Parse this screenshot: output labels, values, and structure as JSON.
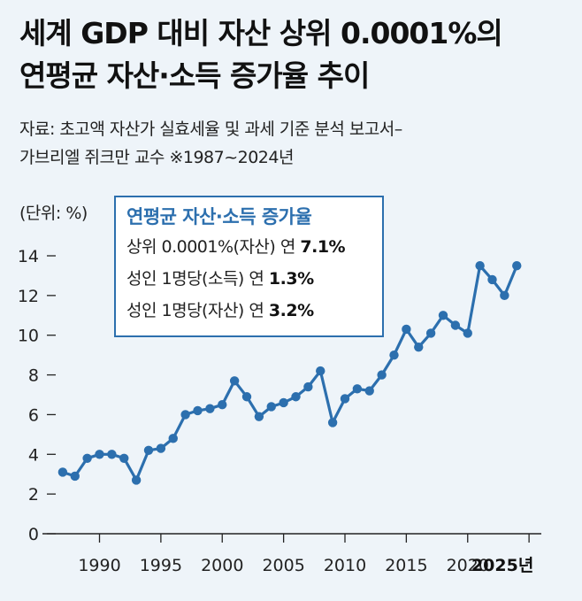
{
  "title": {
    "line1": "세계 GDP 대비 자산 상위 0.0001%의",
    "line2": "연평균 자산·소득 증가율 추이"
  },
  "source": {
    "line1": "자료: 초고액 자산가 실효세율 및 과세 기준 분석 보고서–",
    "line2": "가브리엘 쥐크만 교수  ※1987~2024년"
  },
  "unit_label": "(단위: %)",
  "legend": {
    "title": "연평균 자산·소득 증가율",
    "rows": [
      {
        "label": "상위 0.0001%(자산) 연 ",
        "value": "7.1%"
      },
      {
        "label": "성인 1명당(소득) 연 ",
        "value": "1.3%"
      },
      {
        "label": "성인 1명당(자산) 연 ",
        "value": "3.2%"
      }
    ]
  },
  "colors": {
    "line": "#2c6fae",
    "background": "#eef4f9",
    "legend_border": "#2c6fae"
  },
  "chart_data": {
    "type": "line",
    "title": "세계 GDP 대비 자산 상위 0.0001%의 연평균 자산·소득 증가율 추이",
    "ylabel": "(단위: %)",
    "xlabel": "",
    "ylim": [
      0,
      14
    ],
    "yticks": [
      0,
      2,
      4,
      6,
      8,
      10,
      12,
      14
    ],
    "xlim": [
      1986,
      2026
    ],
    "xticks": [
      1990,
      1995,
      2000,
      2005,
      2010,
      2015,
      2020,
      2025
    ],
    "xtick_labels": [
      "1990",
      "1995",
      "2000",
      "2005",
      "2010",
      "2015",
      "2020",
      "2025년"
    ],
    "grid": false,
    "series": [
      {
        "x": [
          1987,
          1988,
          1989,
          1990,
          1991,
          1992,
          1993,
          1994,
          1995,
          1996,
          1997,
          1998,
          1999,
          2000,
          2001,
          2002,
          2003,
          2004,
          2005,
          2006,
          2007,
          2008,
          2009,
          2010,
          2011,
          2012,
          2013,
          2014,
          2015,
          2016,
          2017,
          2018,
          2019,
          2020,
          2021,
          2022,
          2023,
          2024
        ],
        "y": [
          3.1,
          2.9,
          3.8,
          4.0,
          4.0,
          3.8,
          2.7,
          4.2,
          4.3,
          4.8,
          6.0,
          6.2,
          6.3,
          6.5,
          7.7,
          6.9,
          5.9,
          6.4,
          6.6,
          6.9,
          7.4,
          8.2,
          5.6,
          6.8,
          7.3,
          7.2,
          8.0,
          9.0,
          10.3,
          9.4,
          10.1,
          11.0,
          10.5,
          10.1,
          13.5,
          12.8,
          12.0,
          13.5
        ]
      }
    ]
  }
}
